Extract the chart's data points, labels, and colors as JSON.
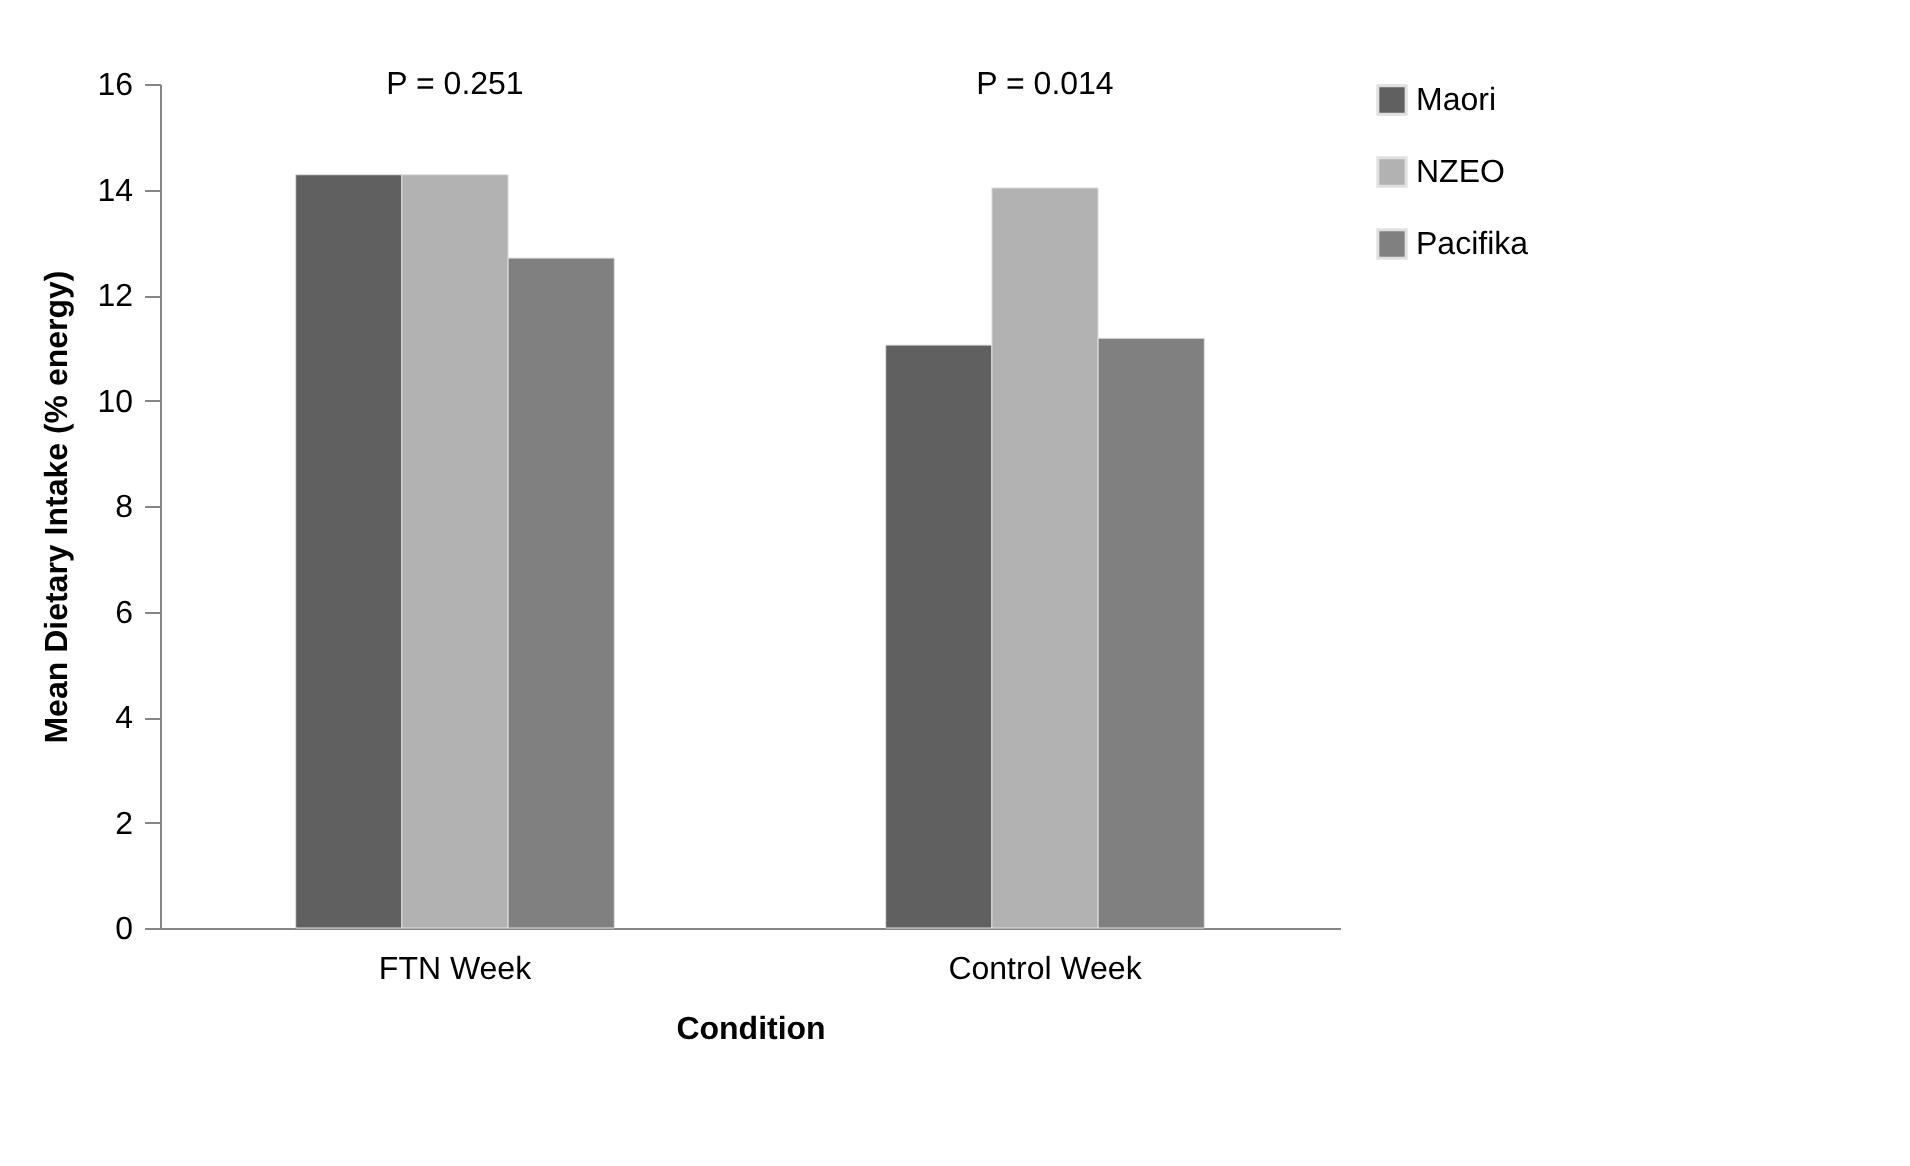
{
  "chart_data": {
    "type": "bar",
    "xlabel": "Condition",
    "ylabel": "Mean Dietary Intake (% energy)",
    "categories": [
      "FTN Week",
      "Control Week"
    ],
    "series": [
      {
        "name": "Maori",
        "color": "#606060",
        "values": [
          14.28,
          11.05
        ]
      },
      {
        "name": "NZEO",
        "color": "#b2b2b2",
        "values": [
          14.28,
          14.03
        ]
      },
      {
        "name": "Pacifika",
        "color": "#808080",
        "values": [
          12.7,
          11.18
        ]
      }
    ],
    "ylim": [
      0,
      16
    ],
    "yticks": [
      0,
      2,
      4,
      6,
      8,
      10,
      12,
      14,
      16
    ],
    "grid": false,
    "legend": "right",
    "annotations": [
      "P = 0.251",
      "P = 0.014"
    ]
  }
}
